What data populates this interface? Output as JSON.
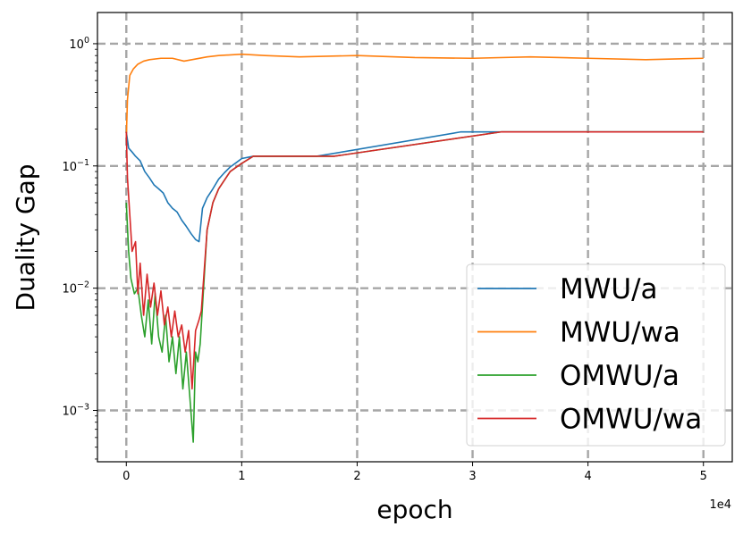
{
  "chart_data": {
    "type": "line",
    "title": "",
    "xlabel": "epoch",
    "ylabel": "Duality Gap",
    "x_offset_label": "1e4",
    "yscale": "log",
    "xlim": [
      -2500,
      52500
    ],
    "ylim": [
      0.00038,
      1.8
    ],
    "x_ticks": [
      {
        "value": 0,
        "label": "0"
      },
      {
        "value": 10000,
        "label": "1"
      },
      {
        "value": 20000,
        "label": "2"
      },
      {
        "value": 30000,
        "label": "3"
      },
      {
        "value": 40000,
        "label": "4"
      },
      {
        "value": 50000,
        "label": "5"
      }
    ],
    "y_ticks": [
      {
        "value": 0.001,
        "base": "10",
        "exp": "−3"
      },
      {
        "value": 0.01,
        "base": "10",
        "exp": "−2"
      },
      {
        "value": 0.1,
        "base": "10",
        "exp": "−1"
      },
      {
        "value": 1,
        "base": "10",
        "exp": "0"
      }
    ],
    "grid": true,
    "legend_position": "lower-right",
    "series": [
      {
        "name": "MWU/a",
        "color": "#1f77b4",
        "x": [
          0,
          200,
          500,
          800,
          1200,
          1600,
          2000,
          2400,
          2800,
          3200,
          3600,
          4000,
          4400,
          4800,
          5200,
          5600,
          6000,
          6300,
          6600,
          7000,
          7500,
          8000,
          8500,
          9000,
          9500,
          10000,
          11000,
          16500,
          29000,
          32500,
          50000
        ],
        "y": [
          0.19,
          0.14,
          0.13,
          0.12,
          0.11,
          0.09,
          0.08,
          0.07,
          0.065,
          0.06,
          0.05,
          0.045,
          0.042,
          0.036,
          0.032,
          0.028,
          0.025,
          0.024,
          0.045,
          0.055,
          0.065,
          0.078,
          0.088,
          0.098,
          0.106,
          0.115,
          0.12,
          0.12,
          0.19,
          0.19,
          0.19
        ]
      },
      {
        "name": "MWU/wa",
        "color": "#ff7f0e",
        "x": [
          0,
          100,
          300,
          600,
          1000,
          1500,
          2000,
          3000,
          4000,
          5000,
          6000,
          7000,
          8000,
          10000,
          12000,
          15000,
          20000,
          25000,
          30000,
          35000,
          40000,
          45000,
          50000
        ],
        "y": [
          0.17,
          0.35,
          0.55,
          0.62,
          0.68,
          0.72,
          0.74,
          0.76,
          0.76,
          0.72,
          0.75,
          0.78,
          0.8,
          0.82,
          0.8,
          0.78,
          0.8,
          0.77,
          0.76,
          0.78,
          0.76,
          0.74,
          0.76
        ]
      },
      {
        "name": "OMWU/a",
        "color": "#2ca02c",
        "x": [
          0,
          200,
          400,
          700,
          1000,
          1300,
          1600,
          1900,
          2200,
          2500,
          2800,
          3100,
          3400,
          3700,
          4000,
          4300,
          4600,
          4900,
          5200,
          5500,
          5800,
          6000,
          6200,
          6400,
          7000,
          7500,
          8000,
          9000,
          10000,
          11000,
          18000,
          32500,
          50000
        ],
        "y": [
          0.05,
          0.02,
          0.012,
          0.009,
          0.01,
          0.006,
          0.004,
          0.008,
          0.0035,
          0.009,
          0.004,
          0.003,
          0.006,
          0.0025,
          0.004,
          0.002,
          0.004,
          0.0015,
          0.003,
          0.0013,
          0.00055,
          0.003,
          0.0025,
          0.0035,
          0.03,
          0.05,
          0.065,
          0.09,
          0.105,
          0.12,
          0.12,
          0.19,
          0.19
        ]
      },
      {
        "name": "OMWU/wa",
        "color": "#d62728",
        "x": [
          0,
          100,
          300,
          500,
          800,
          1000,
          1200,
          1500,
          1800,
          2100,
          2400,
          2700,
          3000,
          3300,
          3600,
          3900,
          4200,
          4500,
          4800,
          5100,
          5400,
          5700,
          6000,
          6300,
          6500,
          7000,
          7500,
          8000,
          9000,
          10000,
          11000,
          18000,
          32500,
          50000
        ],
        "y": [
          0.19,
          0.08,
          0.04,
          0.02,
          0.024,
          0.009,
          0.016,
          0.006,
          0.013,
          0.007,
          0.011,
          0.006,
          0.0095,
          0.005,
          0.007,
          0.004,
          0.0065,
          0.004,
          0.005,
          0.003,
          0.0045,
          0.0015,
          0.0045,
          0.0055,
          0.0065,
          0.03,
          0.05,
          0.065,
          0.09,
          0.105,
          0.12,
          0.12,
          0.19,
          0.19
        ]
      }
    ]
  }
}
